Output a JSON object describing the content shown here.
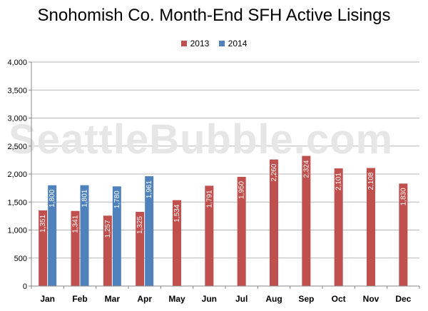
{
  "watermark": "SeattleBubble.com",
  "chart_data": {
    "type": "bar",
    "title": "Snohomish Co. Month-End SFH Active Lisings",
    "categories": [
      "Jan",
      "Feb",
      "Mar",
      "Apr",
      "May",
      "Jun",
      "Jul",
      "Aug",
      "Sep",
      "Oct",
      "Nov",
      "Dec"
    ],
    "series": [
      {
        "name": "2013",
        "color": "#c0504d",
        "values": [
          1351,
          1341,
          1257,
          1325,
          1534,
          1791,
          1950,
          2260,
          2324,
          2101,
          2108,
          1830
        ],
        "labels": [
          "1,351",
          "1,341",
          "1,257",
          "1,325",
          "1,534",
          "1,791",
          "1,950",
          "2,260",
          "2,324",
          "2,101",
          "2,108",
          "1,830"
        ]
      },
      {
        "name": "2014",
        "color": "#4f81bd",
        "values": [
          1800,
          1801,
          1780,
          1961,
          null,
          null,
          null,
          null,
          null,
          null,
          null,
          null
        ],
        "labels": [
          "1,800",
          "1,801",
          "1,780",
          "1,961",
          "",
          "",
          "",
          "",
          "",
          "",
          "",
          ""
        ]
      }
    ],
    "ylim": [
      0,
      4000
    ],
    "yticks": [
      0,
      500,
      1000,
      1500,
      2000,
      2500,
      3000,
      3500,
      4000
    ],
    "ytick_labels": [
      "0",
      "500",
      "1,000",
      "1,500",
      "2,000",
      "2,500",
      "3,000",
      "3,500",
      "4,000"
    ],
    "grid": true,
    "legend_position": "top"
  }
}
